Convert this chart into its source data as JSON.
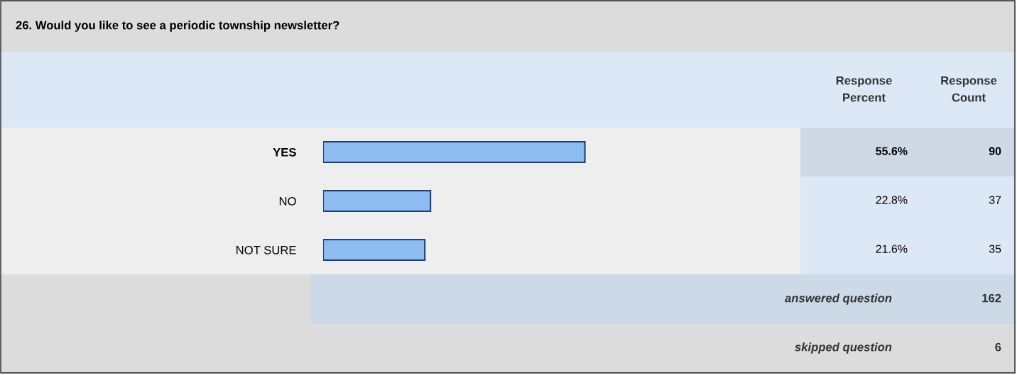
{
  "chart_data": {
    "type": "bar",
    "orientation": "horizontal",
    "title": "26. Would you like to see a periodic township newsletter?",
    "categories": [
      "YES",
      "NO",
      "NOT SURE"
    ],
    "series": [
      {
        "name": "Response Percent",
        "color": "#8dbcf0",
        "values": [
          55.6,
          22.8,
          21.6
        ],
        "value_labels": [
          "55.6%",
          "22.8%",
          "21.6%"
        ]
      }
    ],
    "tick_labels": "y",
    "annotations": [
      "Response Count",
      "90",
      "37",
      "35",
      "answered question",
      "162",
      "skipped question",
      "6"
    ]
  }
}
